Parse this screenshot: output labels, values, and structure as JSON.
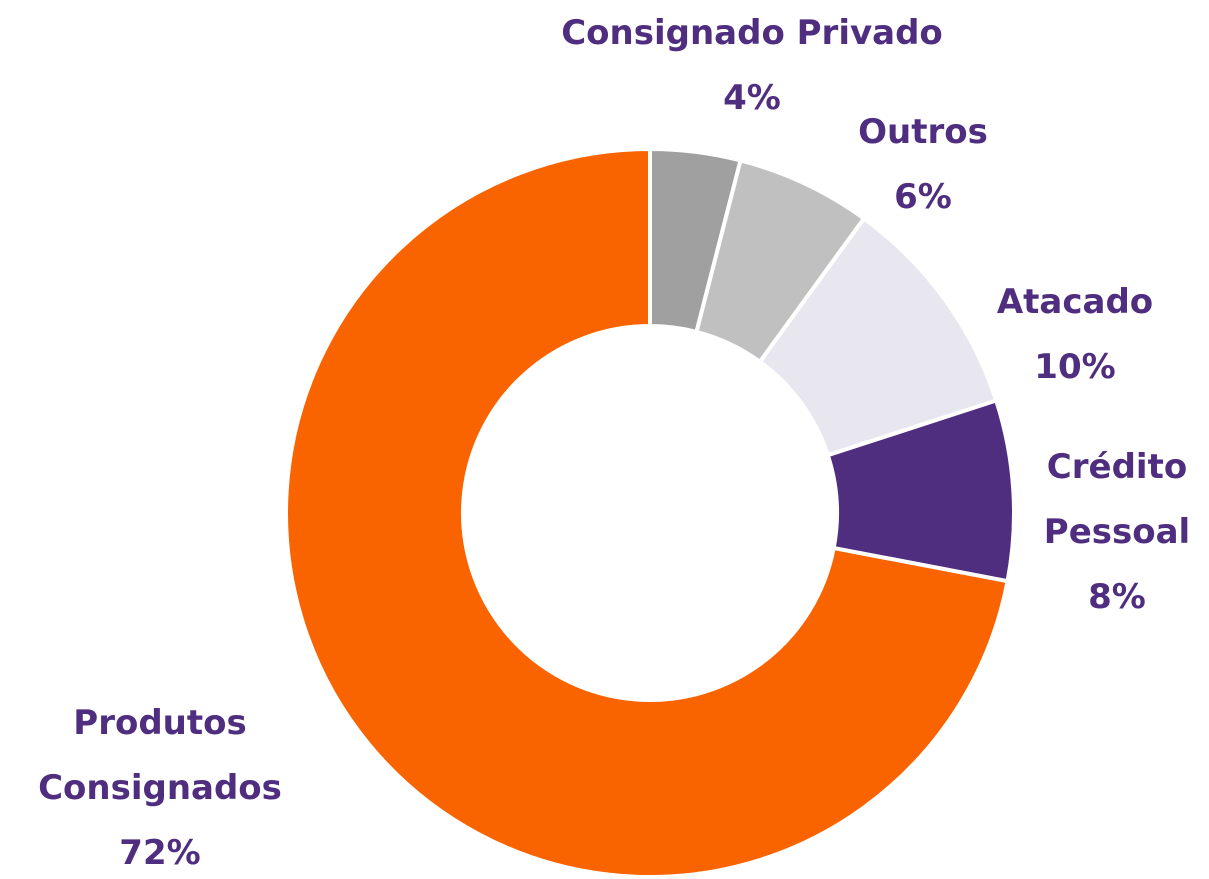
{
  "chart_data": {
    "type": "donut",
    "categories": [
      "Consignado Privado",
      "Outros",
      "Atacado",
      "Crédito Pessoal",
      "Produtos Consignados"
    ],
    "values": [
      4,
      6,
      10,
      8,
      72
    ],
    "value_labels": [
      "4%",
      "6%",
      "10%",
      "8%",
      "72%"
    ],
    "colors": [
      "#a0a0a0",
      "#c0c0c0",
      "#e8e6ee",
      "#4f2d7f",
      "#f96400"
    ]
  }
}
